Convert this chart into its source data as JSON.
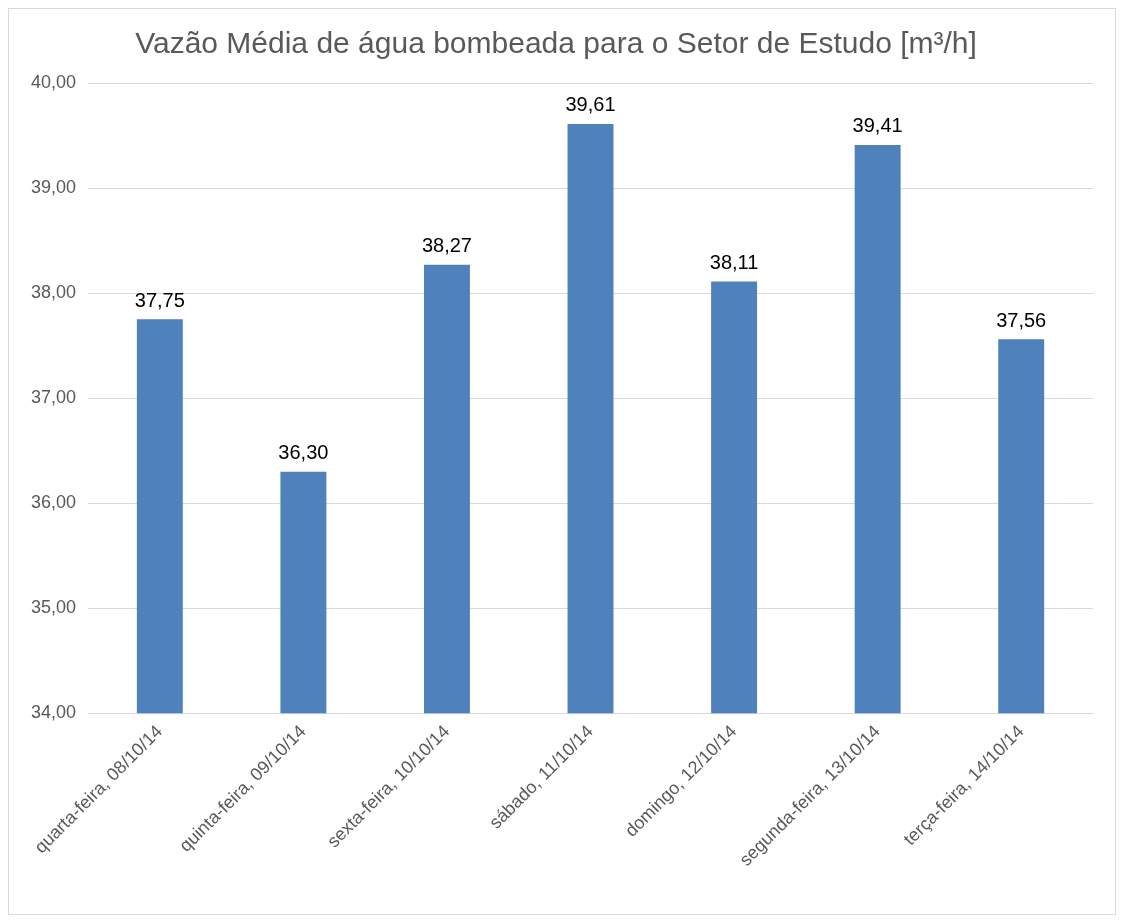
{
  "chart_data": {
    "type": "bar",
    "title": "Vazão Média de água bombeada para o Setor de Estudo [m³/h]",
    "categories": [
      "quarta-feira, 08/10/14",
      "quinta-feira, 09/10/14",
      "sexta-feira, 10/10/14",
      "sábado, 11/10/14",
      "domingo, 12/10/14",
      "segunda-feira, 13/10/14",
      "terça-feira, 14/10/14"
    ],
    "values": [
      37.75,
      36.3,
      38.27,
      39.61,
      38.11,
      39.41,
      37.56
    ],
    "value_labels": [
      "37,75",
      "36,30",
      "38,27",
      "39,61",
      "38,11",
      "39,41",
      "37,56"
    ],
    "color": "#4f81bd",
    "ylim": [
      34,
      40
    ],
    "yticks": [
      {
        "value": 34,
        "label": "34,00"
      },
      {
        "value": 35,
        "label": "35,00"
      },
      {
        "value": 36,
        "label": "36,00"
      },
      {
        "value": 37,
        "label": "37,00"
      },
      {
        "value": 38,
        "label": "38,00"
      },
      {
        "value": 39,
        "label": "39,00"
      },
      {
        "value": 40,
        "label": "40,00"
      }
    ],
    "grid": "y",
    "legend": false
  }
}
